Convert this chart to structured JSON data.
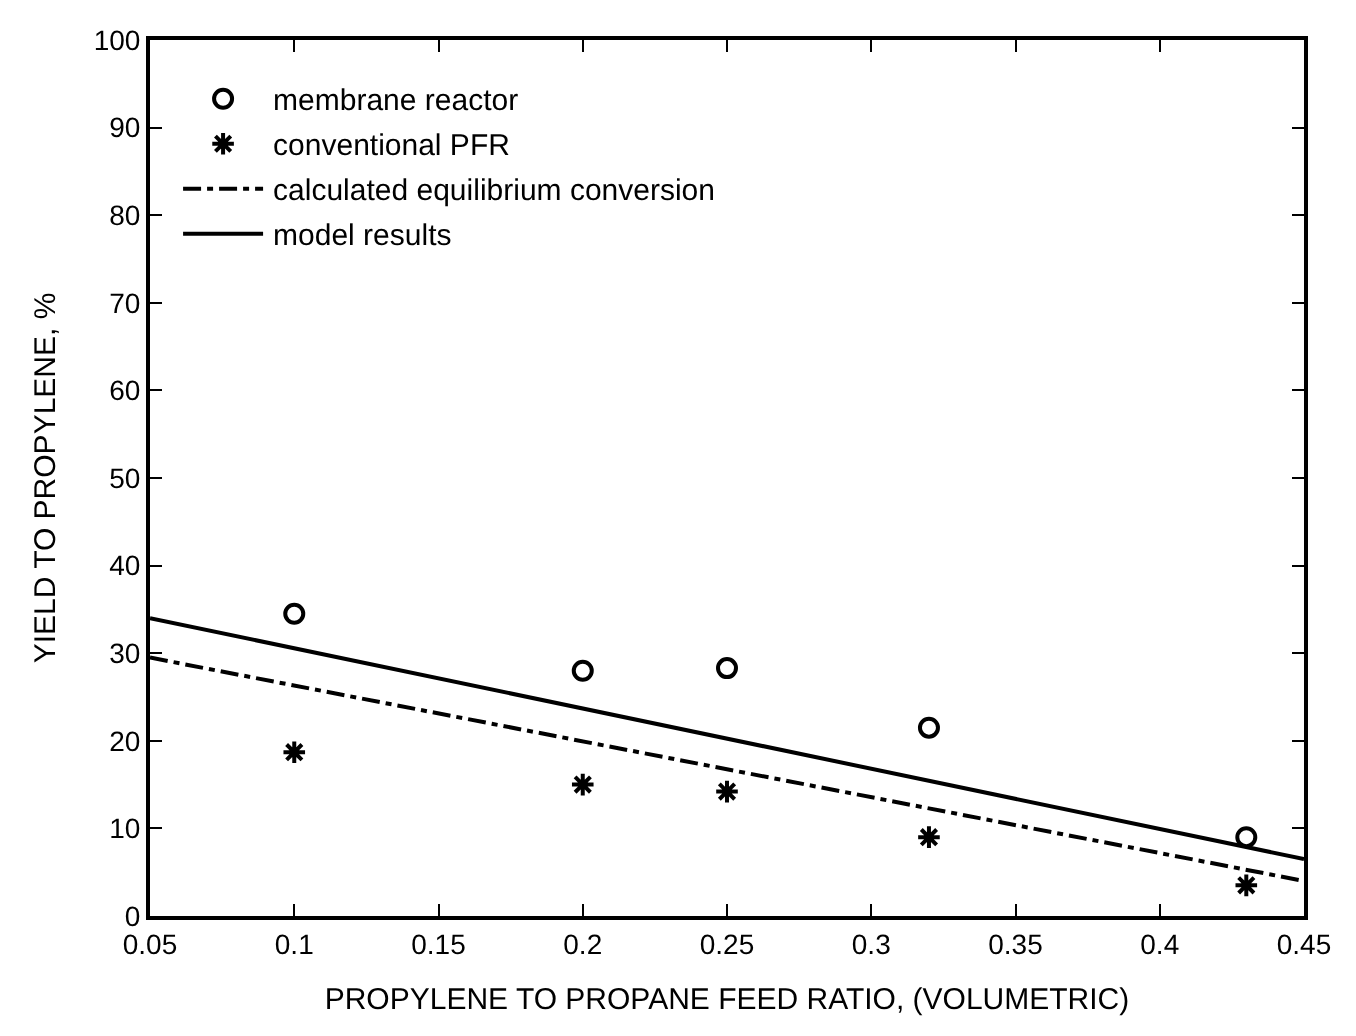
{
  "chart_data": {
    "type": "scatter",
    "xlabel": "PROPYLENE TO PROPANE FEED RATIO, (VOLUMETRIC)",
    "ylabel": "YIELD TO PROPYLENE, %",
    "xlim": [
      0.05,
      0.45
    ],
    "xticks": [
      0.05,
      0.1,
      0.15,
      0.2,
      0.25,
      0.3,
      0.35,
      0.4,
      0.45
    ],
    "ylim": [
      0,
      100
    ],
    "yticks": [
      0,
      10,
      20,
      30,
      40,
      50,
      60,
      70,
      80,
      90,
      100
    ],
    "legend": "top left",
    "series": [
      {
        "name": "membrane reactor",
        "marker": "circle",
        "color": "#000000",
        "x": [
          0.1,
          0.2,
          0.25,
          0.32,
          0.43
        ],
        "values": [
          34.5,
          28,
          28.3,
          21.5,
          9
        ]
      },
      {
        "name": "conventional PFR",
        "marker": "cross",
        "color": "#000000",
        "x": [
          0.1,
          0.2,
          0.25,
          0.32,
          0.43
        ],
        "values": [
          18.7,
          15,
          14.2,
          9,
          3.5
        ]
      },
      {
        "name": "calculated equilibrium conversion",
        "type": "line",
        "line_style": "dashdot",
        "marker": "none",
        "color": "#000000",
        "x": [
          0.05,
          0.45
        ],
        "values": [
          29.5,
          4
        ]
      },
      {
        "name": "model results",
        "type": "line",
        "line_style": "solid",
        "marker": "none",
        "color": "#000000",
        "x": [
          0.05,
          0.45
        ],
        "values": [
          34,
          6.5
        ]
      }
    ]
  }
}
